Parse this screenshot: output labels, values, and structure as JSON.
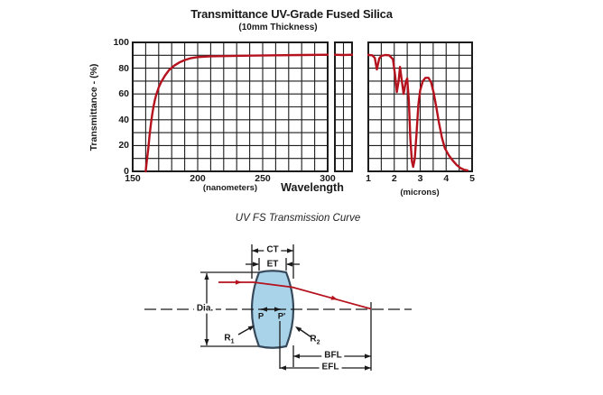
{
  "chart_data": {
    "type": "line",
    "title": "Transmittance UV-Grade Fused Silica",
    "subtitle": "(10mm Thickness)",
    "ylabel": "Transmittance - (%)",
    "xlabel": "Wavelength",
    "caption": "UV FS Transmission Curve",
    "series_name": "UV-grade fused silica transmittance (10mm)",
    "ylim": [
      0,
      100
    ],
    "y_label_ticks": [
      0,
      20,
      40,
      60,
      80,
      100
    ],
    "y_grid_step": 10,
    "grid": true,
    "legend": "none",
    "curve_color": "#b5121e",
    "grid_color": "#1c1c1c",
    "panels": [
      {
        "axis_unit_label": "(nanometers)",
        "xlim": [
          150,
          300
        ],
        "x_ticks": [
          150,
          200,
          250,
          300
        ],
        "x_grid_step": 10,
        "points": [
          [
            160,
            0
          ],
          [
            161,
            9
          ],
          [
            162,
            18
          ],
          [
            163,
            28
          ],
          [
            164,
            37
          ],
          [
            165,
            44
          ],
          [
            166,
            50
          ],
          [
            167,
            55
          ],
          [
            168,
            59
          ],
          [
            170,
            65
          ],
          [
            172,
            69.5
          ],
          [
            175,
            74.5
          ],
          [
            178,
            78.5
          ],
          [
            182,
            82
          ],
          [
            186,
            84.5
          ],
          [
            190,
            86.3
          ],
          [
            195,
            87.8
          ],
          [
            200,
            88.6
          ],
          [
            210,
            89.2
          ],
          [
            220,
            89.4
          ],
          [
            240,
            89.7
          ],
          [
            260,
            90
          ],
          [
            280,
            90.2
          ],
          [
            300,
            90.4
          ]
        ]
      },
      {
        "axis_unit_label": "",
        "axis_break": true,
        "xlim": [
          0,
          1
        ],
        "x_ticks": [],
        "x_grid_step": 0.5,
        "points": [
          [
            0,
            90.4
          ],
          [
            0.5,
            90.2
          ],
          [
            1,
            90.4
          ]
        ]
      },
      {
        "axis_unit_label": "(microns)",
        "xlim": [
          1,
          5
        ],
        "x_ticks": [
          1,
          2,
          3,
          4,
          5
        ],
        "x_grid_step": 0.5,
        "points": [
          [
            1,
            90.3
          ],
          [
            1.15,
            90
          ],
          [
            1.25,
            88
          ],
          [
            1.33,
            79
          ],
          [
            1.42,
            87.5
          ],
          [
            1.5,
            89.5
          ],
          [
            1.65,
            90.2
          ],
          [
            1.8,
            90
          ],
          [
            1.95,
            87
          ],
          [
            2.03,
            75
          ],
          [
            2.1,
            61.5
          ],
          [
            2.17,
            70
          ],
          [
            2.22,
            81
          ],
          [
            2.28,
            72
          ],
          [
            2.36,
            60
          ],
          [
            2.44,
            69
          ],
          [
            2.5,
            72
          ],
          [
            2.56,
            55
          ],
          [
            2.62,
            25
          ],
          [
            2.68,
            8
          ],
          [
            2.73,
            3.5
          ],
          [
            2.79,
            10
          ],
          [
            2.86,
            30
          ],
          [
            2.93,
            52
          ],
          [
            3.0,
            63
          ],
          [
            3.1,
            70
          ],
          [
            3.2,
            72.5
          ],
          [
            3.32,
            72.5
          ],
          [
            3.42,
            69
          ],
          [
            3.52,
            61
          ],
          [
            3.62,
            50
          ],
          [
            3.72,
            38
          ],
          [
            3.84,
            26
          ],
          [
            3.95,
            18
          ],
          [
            4.1,
            12.5
          ],
          [
            4.25,
            8.5
          ],
          [
            4.4,
            5
          ],
          [
            4.55,
            2.5
          ],
          [
            4.7,
            1.2
          ],
          [
            4.82,
            0.8
          ]
        ]
      }
    ]
  },
  "diagram": {
    "name": "plano-convex lens dimension diagram",
    "labels": {
      "ct": "CT",
      "et": "ET",
      "dia": "Dia.",
      "p": "P",
      "p_prime": "P'",
      "r": "R",
      "r1_sub": "1",
      "r2_sub": "2",
      "bfl": "BFL",
      "efl": "EFL"
    },
    "lens_fill": "#a9d3e9",
    "lens_stroke": "#36495a",
    "ray_color": "#b5121e",
    "line_color": "#1a1a1a"
  }
}
